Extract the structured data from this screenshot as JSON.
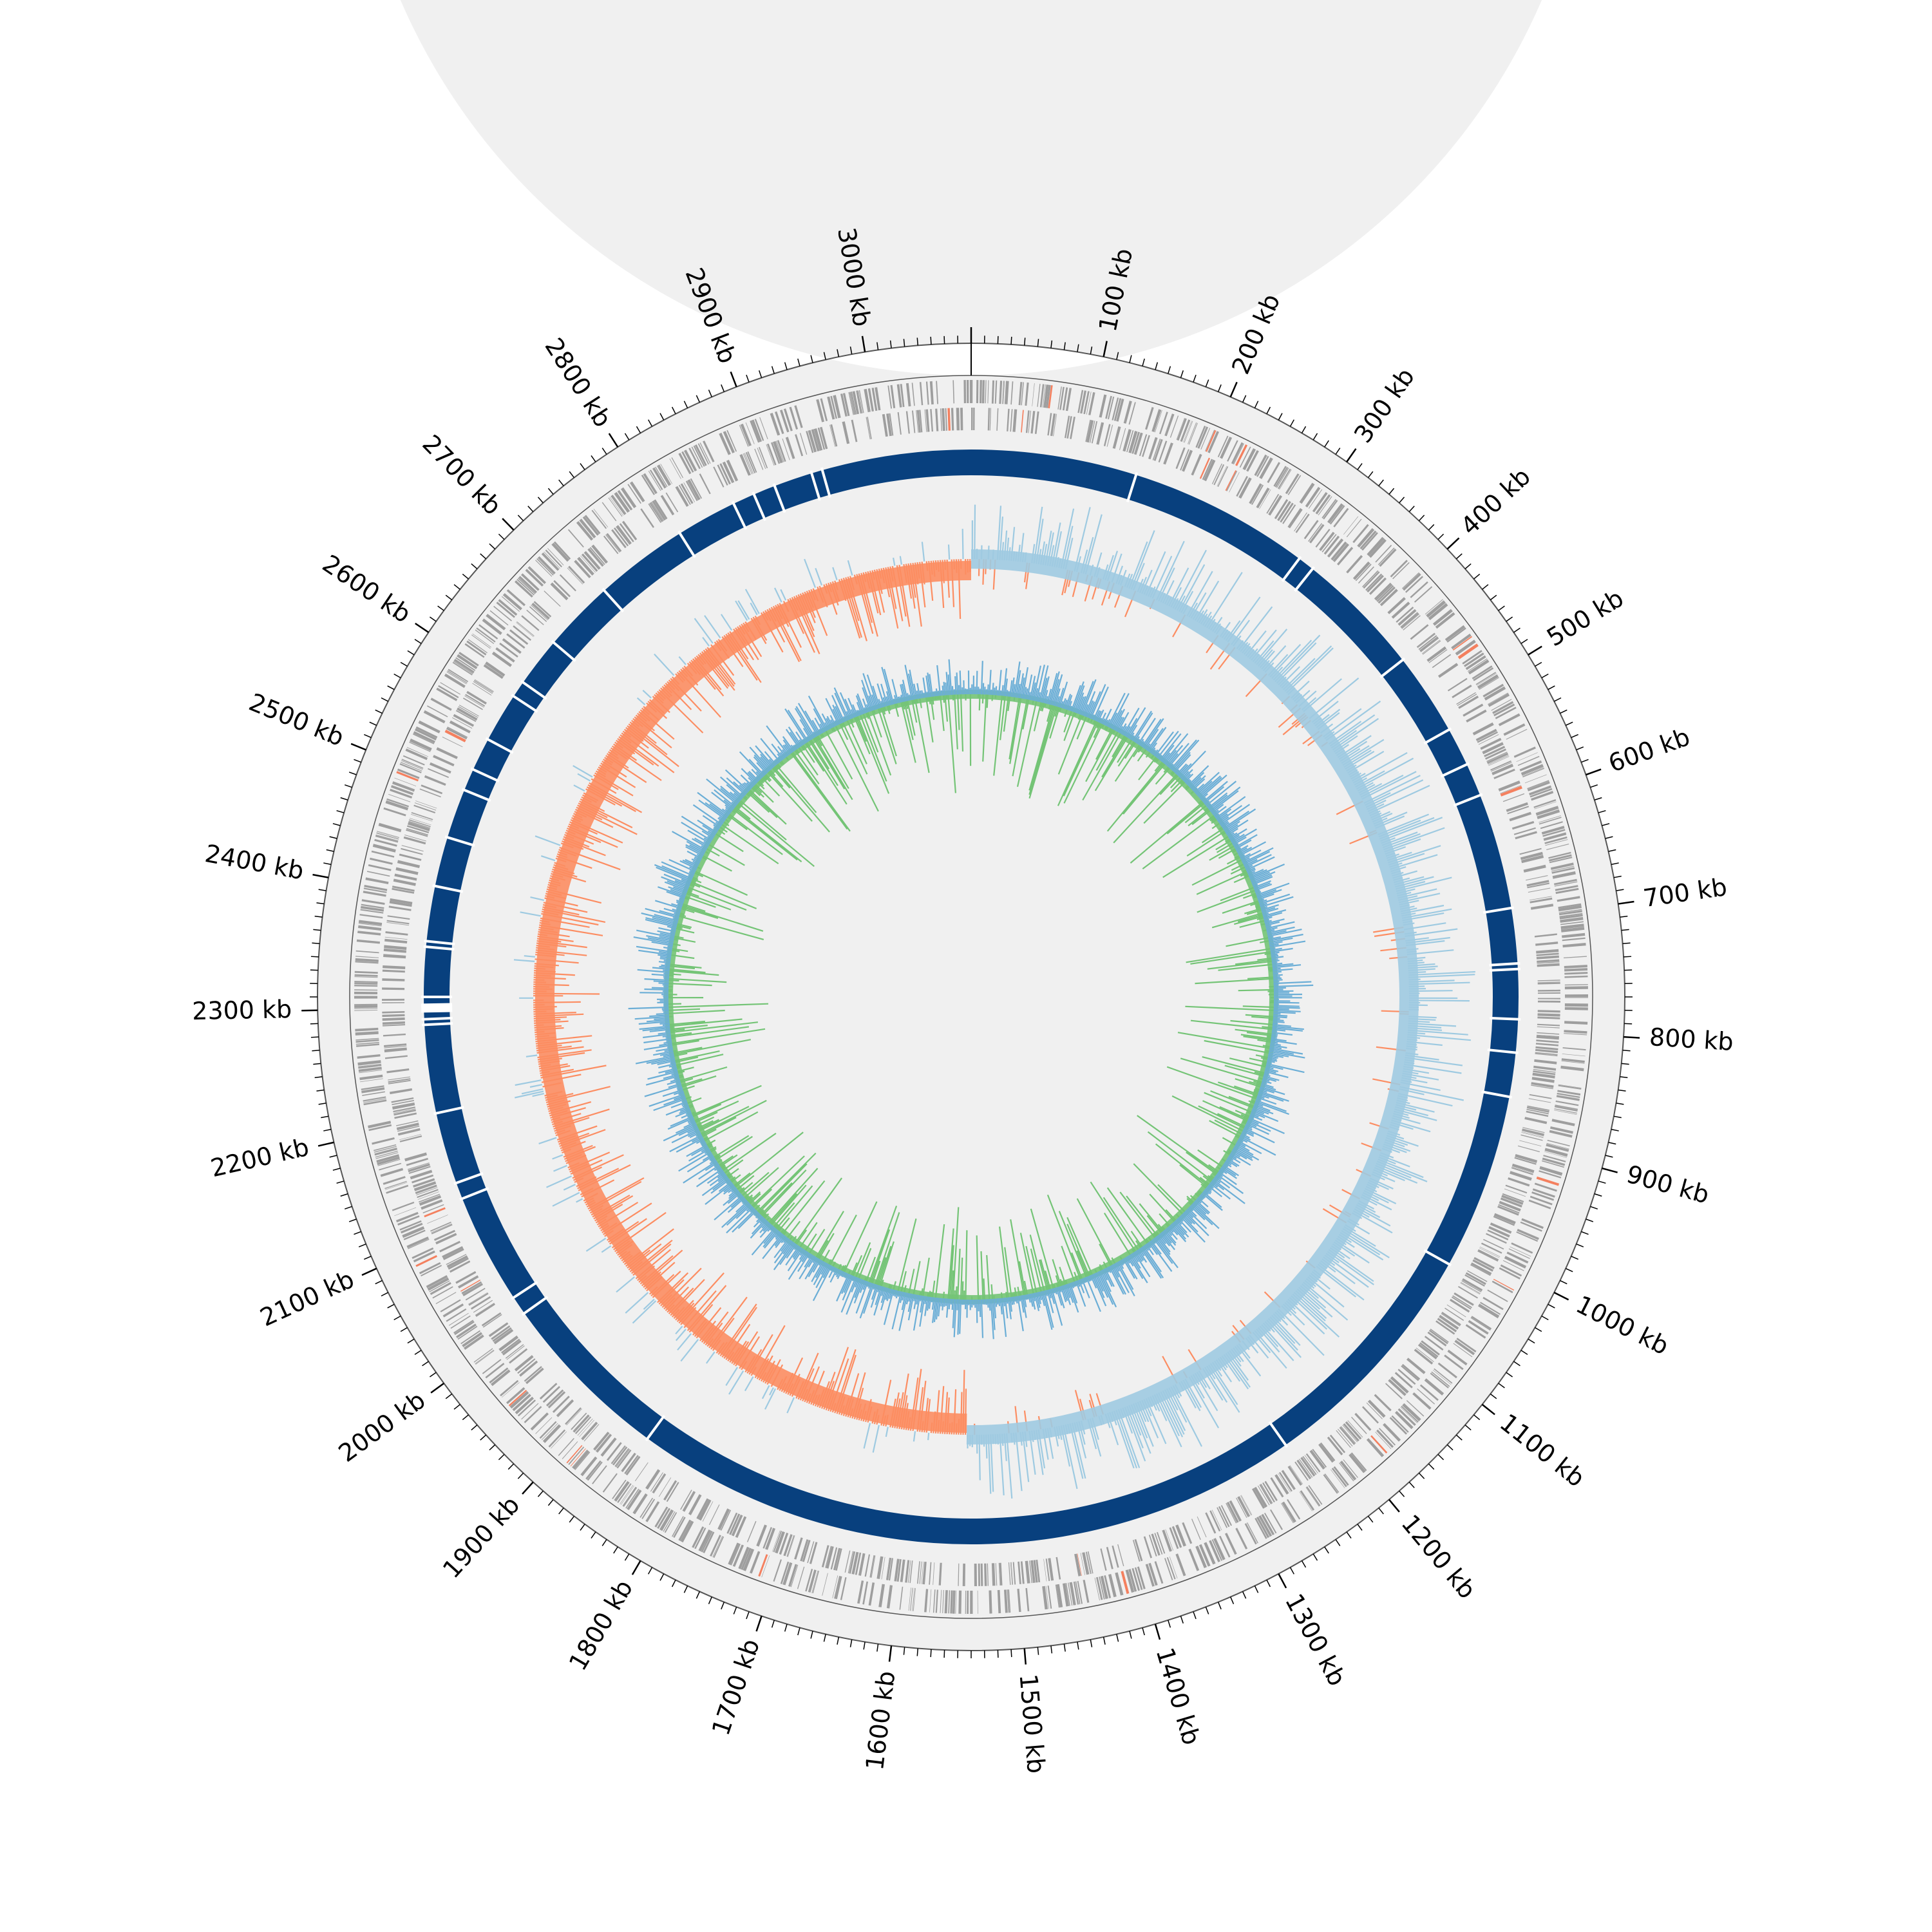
{
  "map": {
    "genome_length_kb": 3080,
    "tick_labels": [
      "100 kb",
      "200 kb",
      "300 kb",
      "400 kb",
      "500 kb",
      "600 kb",
      "700 kb",
      "800 kb",
      "900 kb",
      "1000 kb",
      "1100 kb",
      "1200 kb",
      "1300 kb",
      "1400 kb",
      "1500 kb",
      "1600 kb",
      "1700 kb",
      "1800 kb",
      "1900 kb",
      "2000 kb",
      "2100 kb",
      "2200 kb",
      "2300 kb",
      "2400 kb",
      "2500 kb",
      "2600 kb",
      "2700 kb",
      "2800 kb",
      "2900 kb",
      "3000 kb"
    ],
    "tick_positions_kb": [
      100,
      200,
      300,
      400,
      500,
      600,
      700,
      800,
      900,
      1000,
      1100,
      1200,
      1300,
      1400,
      1500,
      1600,
      1700,
      1800,
      1900,
      2000,
      2100,
      2200,
      2300,
      2400,
      2500,
      2600,
      2700,
      2800,
      2900,
      3000
    ],
    "minor_tick_step_kb": 10
  },
  "tracks": {
    "ruler": {
      "fill": "#f0f0f0"
    },
    "features": {
      "color": "#9e9e9e",
      "highlight_color": "#f4805f"
    },
    "contigs": {
      "color": "#08407e",
      "gap_positions_kb": [
        150,
        315,
        330,
        445,
        520,
        555,
        585,
        690,
        740,
        745,
        790,
        820,
        860,
        1020,
        1240,
        1850,
        2008,
        2025,
        2125,
        2140,
        2205,
        2285,
        2290,
        2300,
        2310,
        2355,
        2360,
        2410,
        2455,
        2500,
        2520,
        2550,
        2595,
        2610,
        2655,
        2720,
        2805,
        2860,
        2880,
        2900,
        2935,
        2945
      ]
    },
    "skew": {
      "positive_color": "#9ecae1",
      "negative_color": "#fc8d62",
      "mark_color": "#000000"
    },
    "content": {
      "positive_color": "#74c476",
      "negative_color": "#6baed6"
    }
  }
}
